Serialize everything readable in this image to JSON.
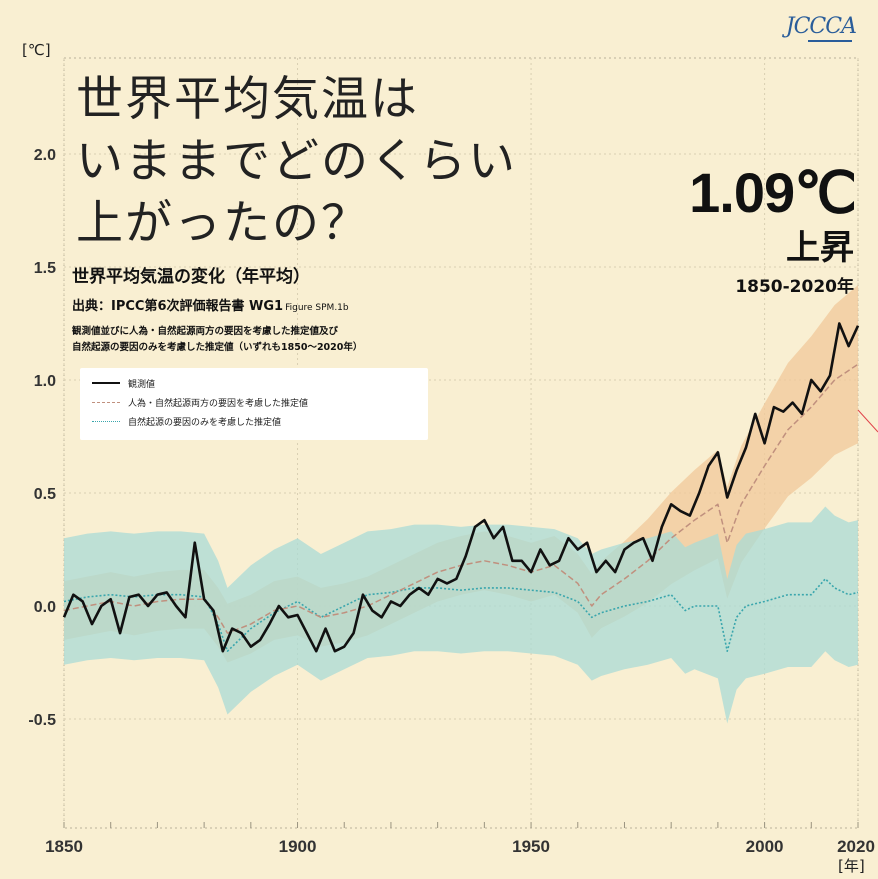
{
  "logo": "JCCCA",
  "headline": [
    "世界平均気温は",
    "いままでどのくらい",
    "上がったの？"
  ],
  "subtitle": "世界平均気温の変化（年平均）",
  "source_main": "出典：IPCC第6次評価報告書 WG1",
  "source_ref": "Figure SPM.1b",
  "notes": [
    "観測値並びに人為・自然起源両方の要因を考慮した推定値及び",
    "自然起源の要因のみを考慮した推定値（いずれも1850～2020年）"
  ],
  "callout": {
    "value": "1.09℃",
    "label": "上昇",
    "range": "1850-2020年"
  },
  "colors": {
    "background": "#f9efd2",
    "observed": "#111111",
    "human_natural": "#c0907e",
    "natural": "#3aa6ad",
    "band_human": "#f0c89a",
    "band_natural": "#a9dbd6",
    "arrow": "#e0434a"
  },
  "chart_data": {
    "type": "line",
    "title": "世界平均気温の変化（年平均）",
    "ylabel": "[℃]",
    "xlabel": "[年]",
    "xlim": [
      1850,
      2020
    ],
    "ylim": [
      -0.9,
      2.4
    ],
    "x_ticks": [
      1850,
      1900,
      1950,
      2000,
      2020
    ],
    "y_ticks": [
      -0.5,
      0.0,
      0.5,
      1.0,
      1.5,
      2.0
    ],
    "y_tick_labels": [
      "-0.5",
      "0.0",
      "0.5",
      "1.0",
      "1.5",
      "2.0"
    ],
    "grid": true,
    "legend_position": "top-left",
    "series": [
      {
        "name": "観測値",
        "style": "solid",
        "x": [
          1850,
          1852,
          1854,
          1856,
          1858,
          1860,
          1862,
          1864,
          1866,
          1868,
          1870,
          1872,
          1874,
          1876,
          1878,
          1880,
          1882,
          1884,
          1886,
          1888,
          1890,
          1892,
          1894,
          1896,
          1898,
          1900,
          1902,
          1904,
          1906,
          1908,
          1910,
          1912,
          1914,
          1916,
          1918,
          1920,
          1922,
          1924,
          1926,
          1928,
          1930,
          1932,
          1934,
          1936,
          1938,
          1940,
          1942,
          1944,
          1946,
          1948,
          1950,
          1952,
          1954,
          1956,
          1958,
          1960,
          1962,
          1964,
          1966,
          1968,
          1970,
          1972,
          1974,
          1976,
          1978,
          1980,
          1982,
          1984,
          1986,
          1988,
          1990,
          1992,
          1994,
          1996,
          1998,
          2000,
          2002,
          2004,
          2006,
          2008,
          2010,
          2012,
          2014,
          2016,
          2018,
          2020
        ],
        "values": [
          -0.05,
          0.05,
          0.02,
          -0.08,
          0.0,
          0.03,
          -0.12,
          0.04,
          0.05,
          0.0,
          0.05,
          0.06,
          0.0,
          -0.05,
          0.28,
          0.03,
          -0.02,
          -0.2,
          -0.1,
          -0.12,
          -0.18,
          -0.15,
          -0.08,
          0.0,
          -0.05,
          -0.04,
          -0.12,
          -0.2,
          -0.1,
          -0.2,
          -0.18,
          -0.12,
          0.05,
          -0.02,
          -0.05,
          0.02,
          0.0,
          0.05,
          0.08,
          0.05,
          0.12,
          0.1,
          0.12,
          0.22,
          0.35,
          0.38,
          0.3,
          0.35,
          0.2,
          0.2,
          0.15,
          0.25,
          0.18,
          0.2,
          0.3,
          0.25,
          0.28,
          0.15,
          0.2,
          0.15,
          0.25,
          0.28,
          0.3,
          0.2,
          0.35,
          0.45,
          0.42,
          0.4,
          0.5,
          0.62,
          0.68,
          0.48,
          0.6,
          0.7,
          0.85,
          0.72,
          0.88,
          0.86,
          0.9,
          0.85,
          1.0,
          0.95,
          1.02,
          1.25,
          1.15,
          1.24
        ]
      },
      {
        "name": "人為・自然起源両方の要因を考慮した推定値",
        "style": "dashed",
        "x": [
          1850,
          1855,
          1860,
          1865,
          1870,
          1875,
          1880,
          1883,
          1885,
          1890,
          1895,
          1900,
          1905,
          1910,
          1915,
          1920,
          1925,
          1930,
          1935,
          1940,
          1945,
          1950,
          1955,
          1960,
          1963,
          1965,
          1970,
          1975,
          1980,
          1985,
          1990,
          1992,
          1995,
          2000,
          2005,
          2010,
          2015,
          2020
        ],
        "values": [
          -0.02,
          0.0,
          0.02,
          0.0,
          0.02,
          0.03,
          0.03,
          -0.05,
          -0.12,
          -0.08,
          -0.02,
          0.0,
          -0.05,
          -0.03,
          0.0,
          0.05,
          0.1,
          0.15,
          0.18,
          0.2,
          0.18,
          0.15,
          0.18,
          0.1,
          0.0,
          0.05,
          0.12,
          0.2,
          0.3,
          0.38,
          0.45,
          0.28,
          0.45,
          0.62,
          0.78,
          0.88,
          1.0,
          1.07
        ]
      },
      {
        "name": "自然起源の要因のみを考慮した推定値",
        "style": "dotted",
        "x": [
          1850,
          1855,
          1860,
          1865,
          1870,
          1875,
          1880,
          1883,
          1885,
          1890,
          1895,
          1900,
          1905,
          1910,
          1915,
          1920,
          1925,
          1930,
          1935,
          1940,
          1945,
          1950,
          1955,
          1960,
          1963,
          1965,
          1970,
          1975,
          1980,
          1983,
          1985,
          1990,
          1992,
          1994,
          1996,
          2000,
          2005,
          2010,
          2013,
          2015,
          2018,
          2020
        ],
        "values": [
          0.02,
          0.04,
          0.05,
          0.04,
          0.05,
          0.05,
          0.04,
          -0.08,
          -0.2,
          -0.1,
          -0.03,
          0.02,
          -0.05,
          0.0,
          0.05,
          0.06,
          0.08,
          0.08,
          0.07,
          0.08,
          0.08,
          0.07,
          0.06,
          0.02,
          -0.05,
          -0.03,
          0.0,
          0.02,
          0.05,
          -0.02,
          0.0,
          0.0,
          -0.2,
          -0.05,
          0.0,
          0.02,
          0.05,
          0.05,
          0.12,
          0.08,
          0.05,
          0.06
        ]
      }
    ]
  }
}
